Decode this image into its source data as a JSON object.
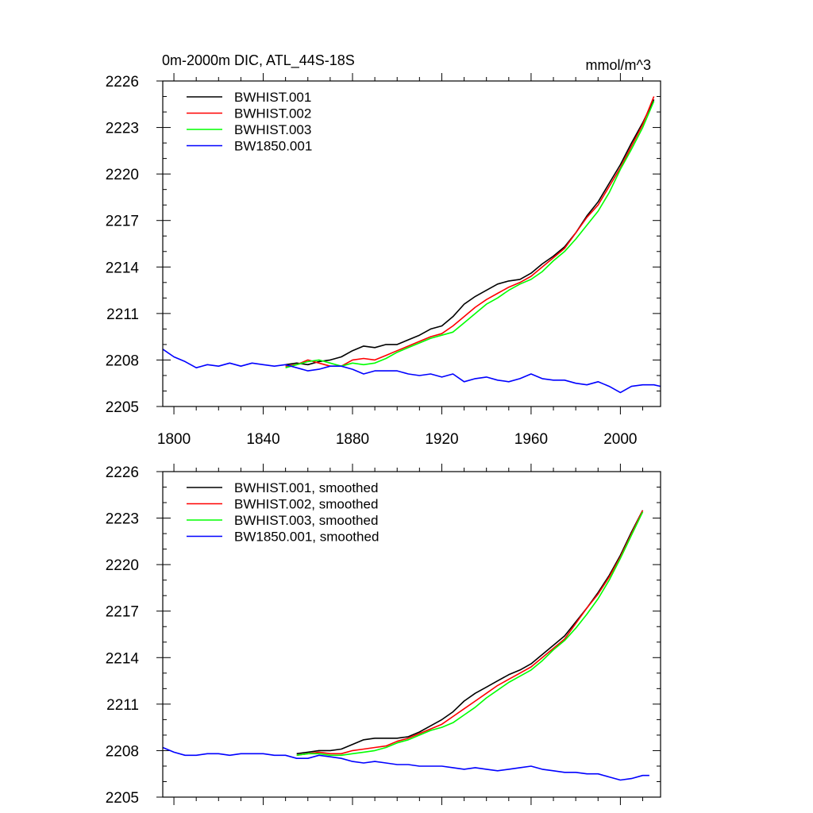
{
  "chart_data": [
    {
      "type": "line",
      "title": "0m-2000m DIC, ATL_44S-18S",
      "units": "mmol/m^3",
      "xlim": [
        1795,
        2018
      ],
      "ylim": [
        2205,
        2226
      ],
      "xticks": [
        1800,
        1840,
        1880,
        1920,
        1960,
        2000
      ],
      "yticks": [
        2205,
        2208,
        2211,
        2214,
        2217,
        2220,
        2223,
        2226
      ],
      "show_x_tick_labels": true,
      "legend_position": "top-left",
      "series": [
        {
          "name": "BWHIST.001",
          "color": "#000000",
          "x": [
            1850,
            1855,
            1860,
            1865,
            1870,
            1875,
            1880,
            1885,
            1890,
            1895,
            1900,
            1905,
            1910,
            1915,
            1920,
            1925,
            1930,
            1935,
            1940,
            1945,
            1950,
            1955,
            1960,
            1965,
            1970,
            1975,
            1980,
            1985,
            1990,
            1995,
            2000,
            2005,
            2010,
            2015
          ],
          "y": [
            2207.7,
            2207.8,
            2207.7,
            2207.9,
            2208.0,
            2208.2,
            2208.6,
            2208.9,
            2208.8,
            2209.0,
            2209.0,
            2209.3,
            2209.6,
            2210.0,
            2210.2,
            2210.8,
            2211.6,
            2212.1,
            2212.5,
            2212.9,
            2213.1,
            2213.2,
            2213.6,
            2214.2,
            2214.7,
            2215.3,
            2216.2,
            2217.3,
            2218.2,
            2219.4,
            2220.6,
            2222.0,
            2223.3,
            2224.8
          ]
        },
        {
          "name": "BWHIST.002",
          "color": "#ff0000",
          "x": [
            1850,
            1855,
            1860,
            1865,
            1870,
            1875,
            1880,
            1885,
            1890,
            1895,
            1900,
            1905,
            1910,
            1915,
            1920,
            1925,
            1930,
            1935,
            1940,
            1945,
            1950,
            1955,
            1960,
            1965,
            1970,
            1975,
            1980,
            1985,
            1990,
            1995,
            2000,
            2005,
            2010,
            2015
          ],
          "y": [
            2207.6,
            2207.7,
            2208.0,
            2207.8,
            2207.6,
            2207.6,
            2208.0,
            2208.1,
            2208.0,
            2208.3,
            2208.6,
            2208.9,
            2209.2,
            2209.5,
            2209.7,
            2210.2,
            2210.8,
            2211.4,
            2211.9,
            2212.3,
            2212.7,
            2213.0,
            2213.4,
            2214.0,
            2214.6,
            2215.2,
            2216.2,
            2217.2,
            2218.0,
            2219.2,
            2220.4,
            2221.8,
            2223.2,
            2225.0
          ]
        },
        {
          "name": "BWHIST.003",
          "color": "#00ff00",
          "x": [
            1850,
            1855,
            1860,
            1865,
            1870,
            1875,
            1880,
            1885,
            1890,
            1895,
            1900,
            1905,
            1910,
            1915,
            1920,
            1925,
            1930,
            1935,
            1940,
            1945,
            1950,
            1955,
            1960,
            1965,
            1970,
            1975,
            1980,
            1985,
            1990,
            1995,
            2000,
            2005,
            2010,
            2015
          ],
          "y": [
            2207.5,
            2207.7,
            2207.9,
            2208.0,
            2207.8,
            2207.6,
            2207.8,
            2207.7,
            2207.8,
            2208.1,
            2208.5,
            2208.8,
            2209.1,
            2209.4,
            2209.6,
            2209.8,
            2210.4,
            2211.0,
            2211.6,
            2212.0,
            2212.5,
            2212.9,
            2213.2,
            2213.7,
            2214.4,
            2215.0,
            2215.8,
            2216.7,
            2217.6,
            2218.8,
            2220.3,
            2221.6,
            2223.0,
            2224.7
          ]
        },
        {
          "name": "BW1850.001",
          "color": "#0000ff",
          "x": [
            1795,
            1800,
            1805,
            1810,
            1815,
            1820,
            1825,
            1830,
            1835,
            1840,
            1845,
            1850,
            1855,
            1860,
            1865,
            1870,
            1875,
            1880,
            1885,
            1890,
            1895,
            1900,
            1905,
            1910,
            1915,
            1920,
            1925,
            1930,
            1935,
            1940,
            1945,
            1950,
            1955,
            1960,
            1965,
            1970,
            1975,
            1980,
            1985,
            1990,
            1995,
            2000,
            2005,
            2010,
            2015,
            2018
          ],
          "y": [
            2208.7,
            2208.2,
            2207.9,
            2207.5,
            2207.7,
            2207.6,
            2207.8,
            2207.6,
            2207.8,
            2207.7,
            2207.6,
            2207.7,
            2207.5,
            2207.3,
            2207.4,
            2207.6,
            2207.6,
            2207.4,
            2207.1,
            2207.3,
            2207.3,
            2207.3,
            2207.1,
            2207.0,
            2207.1,
            2206.9,
            2207.1,
            2206.6,
            2206.8,
            2206.9,
            2206.7,
            2206.6,
            2206.8,
            2207.1,
            2206.8,
            2206.7,
            2206.7,
            2206.5,
            2206.4,
            2206.6,
            2206.3,
            2205.9,
            2206.3,
            2206.4,
            2206.4,
            2206.3
          ]
        }
      ]
    },
    {
      "type": "line",
      "title": "",
      "units": "",
      "xlim": [
        1795,
        2018
      ],
      "ylim": [
        2205,
        2226
      ],
      "xticks": [
        1800,
        1840,
        1880,
        1920,
        1960,
        2000
      ],
      "yticks": [
        2205,
        2208,
        2211,
        2214,
        2217,
        2220,
        2223,
        2226
      ],
      "show_x_tick_labels": false,
      "legend_position": "top-left",
      "series": [
        {
          "name": "BWHIST.001, smoothed",
          "color": "#000000",
          "x": [
            1855,
            1860,
            1865,
            1870,
            1875,
            1880,
            1885,
            1890,
            1895,
            1900,
            1905,
            1910,
            1915,
            1920,
            1925,
            1930,
            1935,
            1940,
            1945,
            1950,
            1955,
            1960,
            1965,
            1970,
            1975,
            1980,
            1985,
            1990,
            1995,
            2000,
            2005,
            2010
          ],
          "y": [
            2207.8,
            2207.9,
            2208.0,
            2208.0,
            2208.1,
            2208.4,
            2208.7,
            2208.8,
            2208.8,
            2208.8,
            2208.9,
            2209.2,
            2209.6,
            2210.0,
            2210.5,
            2211.2,
            2211.7,
            2212.1,
            2212.5,
            2212.9,
            2213.2,
            2213.6,
            2214.2,
            2214.8,
            2215.4,
            2216.3,
            2217.2,
            2218.2,
            2219.3,
            2220.6,
            2222.1,
            2223.5
          ]
        },
        {
          "name": "BWHIST.002, smoothed",
          "color": "#ff0000",
          "x": [
            1855,
            1860,
            1865,
            1870,
            1875,
            1880,
            1885,
            1890,
            1895,
            1900,
            1905,
            1910,
            1915,
            1920,
            1925,
            1930,
            1935,
            1940,
            1945,
            1950,
            1955,
            1960,
            1965,
            1970,
            1975,
            1980,
            1985,
            1990,
            1995,
            2000,
            2005,
            2010
          ],
          "y": [
            2207.7,
            2207.8,
            2207.9,
            2207.8,
            2207.8,
            2208.0,
            2208.1,
            2208.2,
            2208.3,
            2208.6,
            2208.8,
            2209.1,
            2209.4,
            2209.7,
            2210.2,
            2210.7,
            2211.2,
            2211.7,
            2212.2,
            2212.6,
            2213.0,
            2213.4,
            2214.0,
            2214.6,
            2215.2,
            2216.2,
            2217.2,
            2218.1,
            2219.2,
            2220.5,
            2222.0,
            2223.5
          ]
        },
        {
          "name": "BWHIST.003, smoothed",
          "color": "#00ff00",
          "x": [
            1855,
            1860,
            1865,
            1870,
            1875,
            1880,
            1885,
            1890,
            1895,
            1900,
            1905,
            1910,
            1915,
            1920,
            1925,
            1930,
            1935,
            1940,
            1945,
            1950,
            1955,
            1960,
            1965,
            1970,
            1975,
            1980,
            1985,
            1990,
            1995,
            2000,
            2005,
            2010
          ],
          "y": [
            2207.7,
            2207.8,
            2207.8,
            2207.7,
            2207.7,
            2207.8,
            2207.9,
            2208.0,
            2208.2,
            2208.5,
            2208.7,
            2209.0,
            2209.3,
            2209.5,
            2209.8,
            2210.3,
            2210.8,
            2211.4,
            2211.9,
            2212.4,
            2212.8,
            2213.2,
            2213.8,
            2214.5,
            2215.1,
            2215.9,
            2216.8,
            2217.8,
            2219.0,
            2220.4,
            2221.9,
            2223.4
          ]
        },
        {
          "name": "BW1850.001, smoothed",
          "color": "#0000ff",
          "x": [
            1795,
            1800,
            1805,
            1810,
            1815,
            1820,
            1825,
            1830,
            1835,
            1840,
            1845,
            1850,
            1855,
            1860,
            1865,
            1870,
            1875,
            1880,
            1885,
            1890,
            1895,
            1900,
            1905,
            1910,
            1915,
            1920,
            1925,
            1930,
            1935,
            1940,
            1945,
            1950,
            1955,
            1960,
            1965,
            1970,
            1975,
            1980,
            1985,
            1990,
            1995,
            2000,
            2005,
            2010,
            2013
          ],
          "y": [
            2208.2,
            2207.9,
            2207.7,
            2207.7,
            2207.8,
            2207.8,
            2207.7,
            2207.8,
            2207.8,
            2207.8,
            2207.7,
            2207.7,
            2207.5,
            2207.5,
            2207.7,
            2207.6,
            2207.5,
            2207.3,
            2207.2,
            2207.3,
            2207.2,
            2207.1,
            2207.1,
            2207.0,
            2207.0,
            2207.0,
            2206.9,
            2206.8,
            2206.9,
            2206.8,
            2206.7,
            2206.8,
            2206.9,
            2207.0,
            2206.8,
            2206.7,
            2206.6,
            2206.6,
            2206.5,
            2206.5,
            2206.3,
            2206.1,
            2206.2,
            2206.4,
            2206.4
          ]
        }
      ]
    }
  ]
}
